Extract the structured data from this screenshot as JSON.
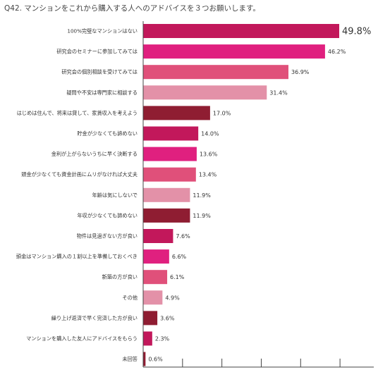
{
  "chart_data": {
    "type": "bar",
    "orientation": "horizontal",
    "title": "Q42. マンションをこれから購入する人へのアドバイスを３つお願いします。",
    "categories": [
      "100%完璧なマンションはない",
      "研究会のセミナーに参加してみては",
      "研究会の個別相談を受けてみては",
      "疑問や不安は専門家に相談する",
      "はじめは住んで、将来は貸して、家賃収入を考えよう",
      "貯金が少なくても諦めない",
      "金利が上がらないうちに早く決断する",
      "頭金が少なくても資金計画にムリがなければ大丈夫",
      "年齢は気にしないで",
      "年収が少なくても諦めない",
      "物件は見過ぎない方が良い",
      "頭金はマンション購入の１割以上を準備しておくべき",
      "新築の方が良い",
      "その他",
      "繰り上げ返済で早く完済した方が良い",
      "マンションを購入した友人にアドバイスをもらう",
      "未回答"
    ],
    "values": [
      49.8,
      46.2,
      36.9,
      31.4,
      17.0,
      14.0,
      13.6,
      13.4,
      11.9,
      11.9,
      7.6,
      6.6,
      6.1,
      4.9,
      3.6,
      2.3,
      0.6
    ],
    "value_labels": [
      "49.8%",
      "46.2%",
      "36.9%",
      "31.4%",
      "17.0%",
      "14.0%",
      "13.6%",
      "13.4%",
      "11.9%",
      "11.9%",
      "7.6%",
      "6.6%",
      "6.1%",
      "4.9%",
      "3.6%",
      "2.3%",
      "0.6%"
    ],
    "bar_colors": [
      "#c2185b",
      "#e0207f",
      "#e0507a",
      "#e391a8",
      "#8f1d32",
      "#c2185b",
      "#e0207f",
      "#e0507a",
      "#e391a8",
      "#8f1d32",
      "#c2185b",
      "#e0207f",
      "#e0507a",
      "#e391a8",
      "#8f1d32",
      "#c2185b",
      "#8f1d32"
    ],
    "xlim": [
      0,
      60
    ],
    "grid": false,
    "legend": "none"
  }
}
